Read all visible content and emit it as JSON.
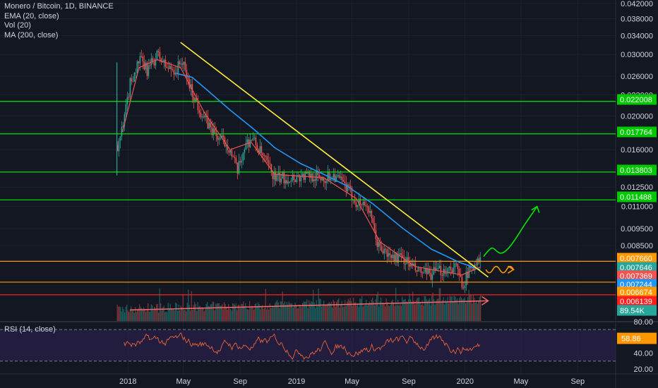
{
  "legend": {
    "symbol": "Monero / Bitcoin, 1D, BINANCE",
    "ema": "EMA (20, close)",
    "vol": "Vol (20)",
    "ma": "MA (200, close)"
  },
  "rsi_legend": "RSI (14, close)",
  "colors": {
    "background": "#131722",
    "grid": "#1e222d",
    "up": "#26a69a",
    "down": "#ef5350",
    "ema": "#f05350",
    "ma": "#2196f3",
    "trendline": "#ffeb3b",
    "green_level": "#00e600",
    "orange_level": "#ff9800",
    "red_level": "#ff1e1e",
    "rsi_line": "#e8633a",
    "rsi_band": "#2a1f4a"
  },
  "chart_data": {
    "type": "candlestick",
    "scale": "log",
    "x_ticks": [
      "2018",
      "May",
      "Sep",
      "2019",
      "May",
      "Sep",
      "2020",
      "May",
      "Sep"
    ],
    "y_ticks": [
      "0.042000",
      "0.038000",
      "0.034000",
      "0.030000",
      "0.026000",
      "0.023000",
      "0.020000",
      "0.018000",
      "0.016000",
      "0.014000",
      "0.012500",
      "0.011000",
      "0.009500",
      "0.008500"
    ],
    "price_labels": [
      {
        "text": "0.022008",
        "color": "#00c800"
      },
      {
        "text": "0.017764",
        "color": "#00c800"
      },
      {
        "text": "0.013803",
        "color": "#00c800"
      },
      {
        "text": "0.011488",
        "color": "#00c800"
      },
      {
        "text": "0.007660",
        "color": "#ff9800"
      },
      {
        "text": "0.007646",
        "color": "#26a69a"
      },
      {
        "text": "0.007369",
        "color": "#f05350"
      },
      {
        "text": "0.007244",
        "color": "#2196f3"
      },
      {
        "text": "0.006674",
        "color": "#ff9800"
      },
      {
        "text": "0.006139",
        "color": "#ff1e1e"
      },
      {
        "text": "89.54K",
        "color": "#26a69a"
      }
    ],
    "horizontal_levels": [
      {
        "price": 0.022008,
        "color": "green"
      },
      {
        "price": 0.017764,
        "color": "green"
      },
      {
        "price": 0.013803,
        "color": "green"
      },
      {
        "price": 0.011488,
        "color": "green"
      },
      {
        "price": 0.00766,
        "color": "orange"
      },
      {
        "price": 0.006674,
        "color": "orange"
      },
      {
        "price": 0.006139,
        "color": "red"
      }
    ],
    "price_path": [
      {
        "x": "2017-12-08",
        "y": 0.0165
      },
      {
        "x": "2017-12-20",
        "y": 0.0185
      },
      {
        "x": "2018-01-05",
        "y": 0.025
      },
      {
        "x": "2018-01-25",
        "y": 0.029
      },
      {
        "x": "2018-02-10",
        "y": 0.027
      },
      {
        "x": "2018-03-05",
        "y": 0.03
      },
      {
        "x": "2018-03-25",
        "y": 0.0275
      },
      {
        "x": "2018-04-15",
        "y": 0.027
      },
      {
        "x": "2018-04-25",
        "y": 0.029
      },
      {
        "x": "2018-05-20",
        "y": 0.023
      },
      {
        "x": "2018-06-15",
        "y": 0.0195
      },
      {
        "x": "2018-07-10",
        "y": 0.0175
      },
      {
        "x": "2018-08-05",
        "y": 0.0165
      },
      {
        "x": "2018-08-25",
        "y": 0.0138
      },
      {
        "x": "2018-09-10",
        "y": 0.0165
      },
      {
        "x": "2018-09-25",
        "y": 0.0173
      },
      {
        "x": "2018-10-20",
        "y": 0.0152
      },
      {
        "x": "2018-11-15",
        "y": 0.0132
      },
      {
        "x": "2018-12-15",
        "y": 0.0133
      },
      {
        "x": "2019-02-01",
        "y": 0.0135
      },
      {
        "x": "2019-03-01",
        "y": 0.0132
      },
      {
        "x": "2019-03-20",
        "y": 0.0136
      },
      {
        "x": "2019-04-15",
        "y": 0.0126
      },
      {
        "x": "2019-05-10",
        "y": 0.0113
      },
      {
        "x": "2019-06-01",
        "y": 0.0112
      },
      {
        "x": "2019-06-25",
        "y": 0.0085
      },
      {
        "x": "2019-07-20",
        "y": 0.0079
      },
      {
        "x": "2019-08-20",
        "y": 0.0078
      },
      {
        "x": "2019-09-15",
        "y": 0.0072
      },
      {
        "x": "2019-10-10",
        "y": 0.007
      },
      {
        "x": "2019-11-10",
        "y": 0.0072
      },
      {
        "x": "2019-12-10",
        "y": 0.0074
      },
      {
        "x": "2019-12-25",
        "y": 0.0066
      },
      {
        "x": "2020-01-10",
        "y": 0.0072
      },
      {
        "x": "2020-01-20",
        "y": 0.0076
      },
      {
        "x": "2020-02-03",
        "y": 0.00765
      }
    ],
    "ema20": [
      {
        "x": "2017-12-20",
        "y": 0.018
      },
      {
        "x": "2018-01-25",
        "y": 0.0275
      },
      {
        "x": "2018-03-05",
        "y": 0.029
      },
      {
        "x": "2018-04-25",
        "y": 0.0275
      },
      {
        "x": "2018-06-15",
        "y": 0.0205
      },
      {
        "x": "2018-08-10",
        "y": 0.016
      },
      {
        "x": "2018-09-25",
        "y": 0.0168
      },
      {
        "x": "2018-11-15",
        "y": 0.0136
      },
      {
        "x": "2019-03-01",
        "y": 0.0133
      },
      {
        "x": "2019-05-10",
        "y": 0.0116
      },
      {
        "x": "2019-07-01",
        "y": 0.0087
      },
      {
        "x": "2019-09-15",
        "y": 0.0074
      },
      {
        "x": "2019-12-25",
        "y": 0.007
      },
      {
        "x": "2020-02-03",
        "y": 0.007369
      }
    ],
    "ma200": [
      {
        "x": "2018-04-15",
        "y": 0.0265
      },
      {
        "x": "2018-05-20",
        "y": 0.0258
      },
      {
        "x": "2018-06-20",
        "y": 0.0238
      },
      {
        "x": "2018-08-10",
        "y": 0.0208
      },
      {
        "x": "2018-10-01",
        "y": 0.0183
      },
      {
        "x": "2018-11-15",
        "y": 0.0162
      },
      {
        "x": "2019-01-10",
        "y": 0.0146
      },
      {
        "x": "2019-03-01",
        "y": 0.0136
      },
      {
        "x": "2019-04-20",
        "y": 0.0126
      },
      {
        "x": "2019-06-15",
        "y": 0.0112
      },
      {
        "x": "2019-08-20",
        "y": 0.0095
      },
      {
        "x": "2019-10-20",
        "y": 0.0083
      },
      {
        "x": "2019-12-20",
        "y": 0.0076
      },
      {
        "x": "2020-02-03",
        "y": 0.007244
      }
    ],
    "trendline": [
      {
        "x": "2018-04-25",
        "y": 0.0325
      },
      {
        "x": "2020-02-20",
        "y": 0.0069
      }
    ],
    "volume_trend": [
      {
        "x": "2018-01-05",
        "y": 0.3
      },
      {
        "x": "2020-02-20",
        "y": 0.55
      }
    ],
    "projection_up": [
      {
        "x": "2020-02-10",
        "y": 0.0079
      },
      {
        "x": "2020-03-15",
        "y": 0.0081
      },
      {
        "x": "2020-05-10",
        "y": 0.0098
      },
      {
        "x": "2020-06-05",
        "y": 0.011
      }
    ],
    "projection_sideways": [
      {
        "x": "2020-02-15",
        "y": 0.00725
      },
      {
        "x": "2020-04-15",
        "y": 0.00735
      }
    ],
    "volume_last": "89.54K",
    "rsi": {
      "name": "RSI (14, close)",
      "ticks": [
        "80.00",
        "40.00",
        "20.00"
      ],
      "upper_band": 70,
      "lower_band": 30,
      "last": "58.86"
    }
  }
}
